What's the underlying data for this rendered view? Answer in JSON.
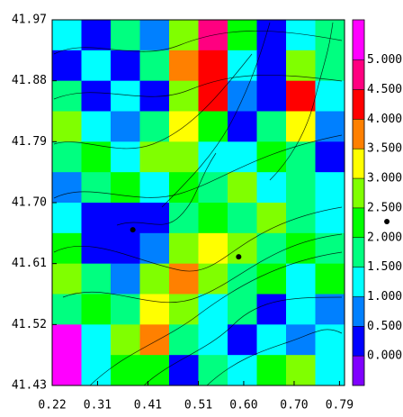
{
  "chart_data": {
    "type": "contour",
    "xlim": [
      0.22,
      0.8
    ],
    "ylim": [
      41.43,
      41.97
    ],
    "xticks": [
      0.22,
      0.31,
      0.41,
      0.51,
      {
        "value": 0.6,
        "label": "0.60"
      },
      {
        "value": 0.7,
        "label": "0.70"
      },
      0.79
    ],
    "yticks": [
      41.97,
      41.88,
      41.79,
      {
        "value": 41.7,
        "label": "41.70"
      },
      41.61,
      41.52,
      41.43
    ],
    "clim": [
      -0.5,
      5.68
    ],
    "cticks": [
      {
        "value": 5,
        "label": "5.000"
      },
      {
        "value": 4.5,
        "label": "4.500"
      },
      {
        "value": 4,
        "label": "4.000"
      },
      {
        "value": 3.5,
        "label": "3.500"
      },
      {
        "value": 3,
        "label": "3.000"
      },
      {
        "value": 2.5,
        "label": "2.500"
      },
      {
        "value": 2,
        "label": "2.000"
      },
      {
        "value": 1.5,
        "label": "1.500"
      },
      {
        "value": 1,
        "label": "1.000"
      },
      {
        "value": 0.5,
        "label": "0.500"
      },
      {
        "value": 0,
        "label": "0.000"
      }
    ],
    "colors": [
      "#8000ff",
      "#0000ff",
      "#0080ff",
      "#00ffff",
      "#00ff80",
      "#00ff00",
      "#80ff00",
      "#ffff00",
      "#ff8000",
      "#ff0000",
      "#ff0080",
      "#ff00ff"
    ],
    "z": [
      [
        1.2,
        0.3,
        1.5,
        0.8,
        2.5,
        4.6,
        2.0,
        0.3,
        1.2,
        1.5
      ],
      [
        0.3,
        1.0,
        0.4,
        1.5,
        3.5,
        4.0,
        1.2,
        0.3,
        2.5,
        1.5
      ],
      [
        1.5,
        0.3,
        1.0,
        0.3,
        2.5,
        4.2,
        0.8,
        0.4,
        4.0,
        1.2
      ],
      [
        2.5,
        1.2,
        0.8,
        1.5,
        3.0,
        2.0,
        0.3,
        1.5,
        3.0,
        0.8
      ],
      [
        1.5,
        2.0,
        1.0,
        2.5,
        2.5,
        1.2,
        1.0,
        2.0,
        1.5,
        0.4
      ],
      [
        0.5,
        1.5,
        2.0,
        1.2,
        2.0,
        1.5,
        2.5,
        1.2,
        1.5,
        1.0
      ],
      [
        1.0,
        0.3,
        0.2,
        0.4,
        1.5,
        2.0,
        1.5,
        2.5,
        1.5,
        1.2
      ],
      [
        2.0,
        0.4,
        0.2,
        0.8,
        2.5,
        3.2,
        2.5,
        1.5,
        2.0,
        1.5
      ],
      [
        2.5,
        1.5,
        0.5,
        2.5,
        3.8,
        2.5,
        1.5,
        2.0,
        1.2,
        2.0
      ],
      [
        1.5,
        2.0,
        1.5,
        3.0,
        2.5,
        1.0,
        1.5,
        0.4,
        1.0,
        0.5
      ],
      [
        5.2,
        1.2,
        2.5,
        3.5,
        1.5,
        1.0,
        0.4,
        1.2,
        0.8,
        1.2
      ],
      [
        5.2,
        1.0,
        2.0,
        2.0,
        0.4,
        1.5,
        1.2,
        2.0,
        2.5,
        1.0
      ]
    ],
    "points": {
      "x": [
        0.38,
        0.59,
        0.884
      ],
      "y": [
        41.66,
        41.62,
        41.672
      ]
    }
  }
}
